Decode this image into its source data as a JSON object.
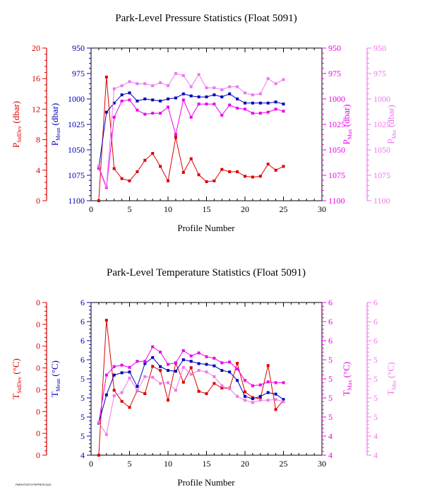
{
  "footer_note": "PARKSTATS.PSPRESCALE",
  "chart_data": [
    {
      "type": "line",
      "title": "Park-Level Pressure Statistics (Float 5091)",
      "xlabel": "Profile Number",
      "xlim": [
        0,
        30
      ],
      "x_ticks": [
        "0",
        "5",
        "10",
        "15",
        "20",
        "25",
        "30"
      ],
      "axes": [
        {
          "id": "stddev",
          "label_main": "P",
          "label_sub": "StdDev",
          "label_unit": " (dbar)",
          "ylim": [
            0,
            20
          ],
          "ticks": [
            "0",
            "4",
            "8",
            "12",
            "16",
            "20"
          ],
          "color": "#dd0000"
        },
        {
          "id": "mean",
          "label_main": "P",
          "label_sub": "Mean",
          "label_unit": " (dbar)",
          "ylim": [
            1100,
            950
          ],
          "ticks": [
            "1100",
            "1075",
            "1050",
            "1025",
            "1000",
            "975",
            "950"
          ],
          "color": "#0000bb"
        },
        {
          "id": "max",
          "label_main": "P",
          "label_sub": "Max",
          "label_unit": " (dbar)",
          "ylim": [
            1100,
            950
          ],
          "ticks": [
            "1100",
            "1075",
            "1050",
            "1025",
            "1000",
            "975",
            "950"
          ],
          "color": "#ee00ee"
        },
        {
          "id": "min",
          "label_main": "P",
          "label_sub": "Min",
          "label_unit": " (dbar)",
          "ylim": [
            1100,
            950
          ],
          "ticks": [
            "1100",
            "1075",
            "1050",
            "1025",
            "1000",
            "975",
            "950"
          ],
          "color": "#ee77ee"
        }
      ],
      "x": [
        1,
        2,
        3,
        4,
        5,
        6,
        7,
        8,
        9,
        10,
        11,
        12,
        13,
        14,
        15,
        16,
        17,
        18,
        19,
        20,
        21,
        22,
        23,
        24,
        25
      ],
      "series": [
        {
          "axis": "stddev",
          "color": "#dd0000",
          "values": [
            0,
            16.2,
            4.2,
            2.9,
            2.6,
            3.8,
            5.3,
            6.2,
            4.5,
            2.6,
            8.3,
            3.7,
            5.5,
            3.4,
            2.5,
            2.6,
            4.1,
            3.8,
            3.8,
            3.2,
            3.1,
            3.2,
            4.8,
            4.0,
            4.5
          ]
        },
        {
          "axis": "mean",
          "color": "#0000bb",
          "values": [
            1068,
            1013,
            1004,
            996,
            994,
            1002,
            1000,
            1001,
            1002,
            1000,
            999,
            995,
            997,
            998,
            998,
            996,
            998,
            995,
            1000,
            1004,
            1004,
            1004,
            1004,
            1003,
            1005
          ]
        },
        {
          "axis": "max",
          "color": "#ee00ee",
          "values": [
            1068,
            1087,
            1018,
            1002,
            1001,
            1011,
            1015,
            1014,
            1014,
            1008,
            1035,
            1001,
            1018,
            1005,
            1005,
            1005,
            1016,
            1006,
            1009,
            1010,
            1014,
            1014,
            1013,
            1010,
            1012
          ]
        },
        {
          "axis": "min",
          "color": "#ee77ee",
          "values": [
            1066,
            1086,
            990,
            987,
            983,
            985,
            985,
            987,
            984,
            987,
            975,
            977,
            988,
            976,
            989,
            989,
            991,
            988,
            988,
            994,
            996,
            995,
            980,
            985,
            981
          ]
        }
      ]
    },
    {
      "type": "line",
      "title": "Park-Level Temperature Statistics (Float 5091)",
      "xlabel": "Profile Number",
      "xlim": [
        0,
        30
      ],
      "x_ticks": [
        "0",
        "5",
        "10",
        "15",
        "20",
        "25",
        "30"
      ],
      "axes": [
        {
          "id": "stddev",
          "label_main": "T",
          "label_sub": "StdDev",
          "label_unit": " (°C)",
          "ylim": [
            0,
            1
          ],
          "ticks": [
            "0",
            "0",
            "0",
            "0",
            "0",
            "0",
            "0",
            "0"
          ],
          "color": "#dd0000"
        },
        {
          "id": "mean",
          "label_main": "T",
          "label_sub": "Mean",
          "label_unit": " (°C)",
          "ylim": [
            4,
            6
          ],
          "ticks": [
            "4",
            "5",
            "5",
            "5",
            "5",
            "6",
            "6",
            "6",
            "6"
          ],
          "color": "#0000bb"
        },
        {
          "id": "max",
          "label_main": "T",
          "label_sub": "Max",
          "label_unit": " (°C)",
          "ylim": [
            4,
            6
          ],
          "ticks": [
            "4",
            "4",
            "5",
            "5",
            "5",
            "5",
            "6",
            "6",
            "6"
          ],
          "color": "#ee00ee"
        },
        {
          "id": "min",
          "label_main": "T",
          "label_sub": "Min",
          "label_unit": " (°C)",
          "ylim": [
            4,
            6
          ],
          "ticks": [
            "4",
            "4",
            "5",
            "5",
            "5",
            "5",
            "6",
            "6",
            "6"
          ],
          "color": "#ee77ee"
        }
      ],
      "x": [
        1,
        2,
        3,
        4,
        5,
        6,
        7,
        8,
        9,
        10,
        11,
        12,
        13,
        14,
        15,
        16,
        17,
        18,
        19,
        20,
        21,
        22,
        23,
        24,
        25
      ],
      "series": [
        {
          "axis": "stddev",
          "color": "#dd0000",
          "values": [
            0,
            0.884,
            0.425,
            0.353,
            0.313,
            0.423,
            0.403,
            0.582,
            0.555,
            0.36,
            0.603,
            0.478,
            0.573,
            0.418,
            0.403,
            0.47,
            0.44,
            0.438,
            0.602,
            0.415,
            0.378,
            0.37,
            0.587,
            0.299,
            0.36
          ]
        },
        {
          "axis": "mean",
          "color": "#0000bb",
          "values": [
            4.42,
            4.79,
            5.05,
            5.08,
            5.09,
            4.9,
            5.2,
            5.28,
            5.16,
            5.11,
            5.1,
            5.25,
            5.23,
            5.2,
            5.19,
            5.17,
            5.11,
            5.09,
            4.98,
            4.77,
            4.74,
            4.77,
            4.82,
            4.8,
            4.73
          ]
        },
        {
          "axis": "max",
          "color": "#ee00ee",
          "values": [
            4.43,
            5.05,
            5.16,
            5.18,
            5.15,
            5.23,
            5.23,
            5.42,
            5.35,
            5.19,
            5.21,
            5.37,
            5.3,
            5.34,
            5.29,
            5.27,
            5.21,
            5.22,
            5.13,
            4.98,
            4.91,
            4.92,
            4.96,
            4.95,
            4.95
          ]
        },
        {
          "axis": "min",
          "color": "#ee77ee",
          "values": [
            4.43,
            4.27,
            4.78,
            4.82,
            5.01,
            4.85,
            5.03,
            5.02,
            4.94,
            4.95,
            4.85,
            5.15,
            5.06,
            5.11,
            5.09,
            5.03,
            4.91,
            4.87,
            4.77,
            4.72,
            4.69,
            4.72,
            4.72,
            4.73,
            4.7
          ]
        }
      ]
    }
  ]
}
